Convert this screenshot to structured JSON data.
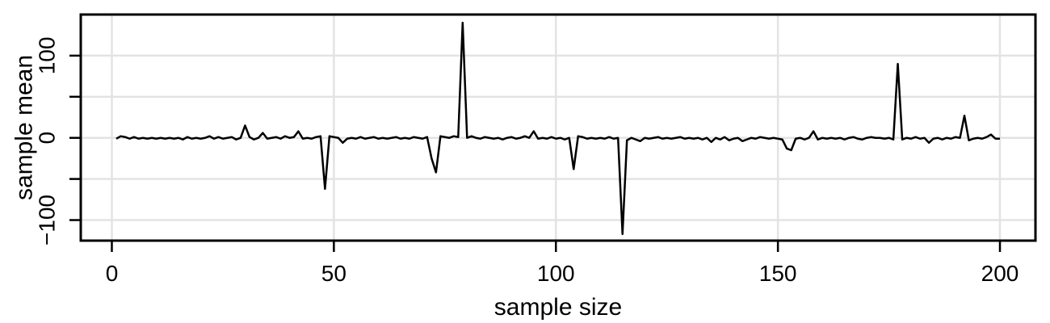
{
  "chart_data": {
    "type": "line",
    "title": "",
    "xlabel": "sample size",
    "ylabel": "sample mean",
    "xlim": [
      -7,
      208
    ],
    "ylim": [
      -125,
      150
    ],
    "xticks": [
      0,
      50,
      100,
      150,
      200
    ],
    "xtick_labels": [
      "0",
      "50",
      "100",
      "150",
      "200"
    ],
    "yticks": [
      -100,
      -50,
      0,
      50,
      100
    ],
    "ytick_labels": [
      "−100",
      "",
      "0",
      "",
      "100"
    ],
    "grid": true,
    "series": [
      {
        "values": [
          [
            1,
            -1
          ],
          [
            2,
            2
          ],
          [
            3,
            1
          ],
          [
            4,
            -1
          ],
          [
            5,
            1
          ],
          [
            6,
            -1
          ],
          [
            7,
            0
          ],
          [
            8,
            -1
          ],
          [
            9,
            0
          ],
          [
            10,
            -1
          ],
          [
            11,
            0
          ],
          [
            12,
            -1
          ],
          [
            13,
            0
          ],
          [
            14,
            -1
          ],
          [
            15,
            0
          ],
          [
            16,
            -2
          ],
          [
            17,
            1
          ],
          [
            18,
            -1
          ],
          [
            19,
            0
          ],
          [
            20,
            -1
          ],
          [
            21,
            0
          ],
          [
            22,
            2
          ],
          [
            23,
            -1
          ],
          [
            24,
            1
          ],
          [
            25,
            -1
          ],
          [
            26,
            0
          ],
          [
            27,
            1
          ],
          [
            28,
            -2
          ],
          [
            29,
            0
          ],
          [
            30,
            15
          ],
          [
            31,
            1
          ],
          [
            32,
            -2
          ],
          [
            33,
            0
          ],
          [
            34,
            6
          ],
          [
            35,
            -1
          ],
          [
            36,
            0
          ],
          [
            37,
            1
          ],
          [
            38,
            -1
          ],
          [
            39,
            2
          ],
          [
            40,
            0
          ],
          [
            41,
            1
          ],
          [
            42,
            8
          ],
          [
            43,
            -1
          ],
          [
            44,
            0
          ],
          [
            45,
            -1
          ],
          [
            46,
            1
          ],
          [
            47,
            2
          ],
          [
            48,
            -62
          ],
          [
            49,
            2
          ],
          [
            50,
            1
          ],
          [
            51,
            0
          ],
          [
            52,
            -6
          ],
          [
            53,
            -1
          ],
          [
            54,
            0
          ],
          [
            55,
            -1
          ],
          [
            56,
            1
          ],
          [
            57,
            -1
          ],
          [
            58,
            0
          ],
          [
            59,
            1
          ],
          [
            60,
            -1
          ],
          [
            61,
            0
          ],
          [
            62,
            -1
          ],
          [
            63,
            0
          ],
          [
            64,
            1
          ],
          [
            65,
            -1
          ],
          [
            66,
            0
          ],
          [
            67,
            -1
          ],
          [
            68,
            1
          ],
          [
            69,
            0
          ],
          [
            70,
            -1
          ],
          [
            71,
            1
          ],
          [
            72,
            -25
          ],
          [
            73,
            -42
          ],
          [
            74,
            2
          ],
          [
            75,
            1
          ],
          [
            76,
            0
          ],
          [
            77,
            2
          ],
          [
            78,
            1
          ],
          [
            79,
            140
          ],
          [
            80,
            0
          ],
          [
            81,
            2
          ],
          [
            82,
            0
          ],
          [
            83,
            -1
          ],
          [
            84,
            1
          ],
          [
            85,
            0
          ],
          [
            86,
            -1
          ],
          [
            87,
            0
          ],
          [
            88,
            -2
          ],
          [
            89,
            0
          ],
          [
            90,
            1
          ],
          [
            91,
            -1
          ],
          [
            92,
            0
          ],
          [
            93,
            2
          ],
          [
            94,
            0
          ],
          [
            95,
            8
          ],
          [
            96,
            -1
          ],
          [
            97,
            0
          ],
          [
            98,
            -1
          ],
          [
            99,
            1
          ],
          [
            100,
            -1
          ],
          [
            101,
            0
          ],
          [
            102,
            -2
          ],
          [
            103,
            0
          ],
          [
            104,
            -38
          ],
          [
            105,
            2
          ],
          [
            106,
            1
          ],
          [
            107,
            -1
          ],
          [
            108,
            0
          ],
          [
            109,
            -1
          ],
          [
            110,
            0
          ],
          [
            111,
            -1
          ],
          [
            112,
            1
          ],
          [
            113,
            -1
          ],
          [
            114,
            0
          ],
          [
            115,
            -117
          ],
          [
            116,
            -3
          ],
          [
            117,
            0
          ],
          [
            118,
            -2
          ],
          [
            119,
            -4
          ],
          [
            120,
            0
          ],
          [
            121,
            -1
          ],
          [
            122,
            0
          ],
          [
            123,
            1
          ],
          [
            124,
            -1
          ],
          [
            125,
            0
          ],
          [
            126,
            -1
          ],
          [
            127,
            0
          ],
          [
            128,
            1
          ],
          [
            129,
            -1
          ],
          [
            130,
            0
          ],
          [
            131,
            -1
          ],
          [
            132,
            0
          ],
          [
            133,
            -2
          ],
          [
            134,
            0
          ],
          [
            135,
            -5
          ],
          [
            136,
            0
          ],
          [
            137,
            -2
          ],
          [
            138,
            1
          ],
          [
            139,
            -3
          ],
          [
            140,
            -1
          ],
          [
            141,
            0
          ],
          [
            142,
            -4
          ],
          [
            143,
            -2
          ],
          [
            144,
            0
          ],
          [
            145,
            -1
          ],
          [
            146,
            1
          ],
          [
            147,
            0
          ],
          [
            148,
            -1
          ],
          [
            149,
            0
          ],
          [
            150,
            -1
          ],
          [
            151,
            -2
          ],
          [
            152,
            -13
          ],
          [
            153,
            -15
          ],
          [
            154,
            -1
          ],
          [
            155,
            0
          ],
          [
            156,
            -2
          ],
          [
            157,
            0
          ],
          [
            158,
            8
          ],
          [
            159,
            -2
          ],
          [
            160,
            0
          ],
          [
            161,
            -1
          ],
          [
            162,
            0
          ],
          [
            163,
            -1
          ],
          [
            164,
            0
          ],
          [
            165,
            -2
          ],
          [
            166,
            0
          ],
          [
            167,
            1
          ],
          [
            168,
            -1
          ],
          [
            169,
            -2
          ],
          [
            170,
            0
          ],
          [
            171,
            1
          ],
          [
            172,
            0
          ],
          [
            173,
            0
          ],
          [
            174,
            -1
          ],
          [
            175,
            0
          ],
          [
            176,
            -2
          ],
          [
            177,
            90
          ],
          [
            178,
            -2
          ],
          [
            179,
            0
          ],
          [
            180,
            -1
          ],
          [
            181,
            1
          ],
          [
            182,
            -1
          ],
          [
            183,
            0
          ],
          [
            184,
            -6
          ],
          [
            185,
            -1
          ],
          [
            186,
            0
          ],
          [
            187,
            -2
          ],
          [
            188,
            0
          ],
          [
            189,
            -1
          ],
          [
            190,
            1
          ],
          [
            191,
            0
          ],
          [
            192,
            27
          ],
          [
            193,
            -3
          ],
          [
            194,
            -1
          ],
          [
            195,
            0
          ],
          [
            196,
            -1
          ],
          [
            197,
            1
          ],
          [
            198,
            4
          ],
          [
            199,
            -1
          ],
          [
            200,
            -1
          ]
        ]
      }
    ]
  }
}
